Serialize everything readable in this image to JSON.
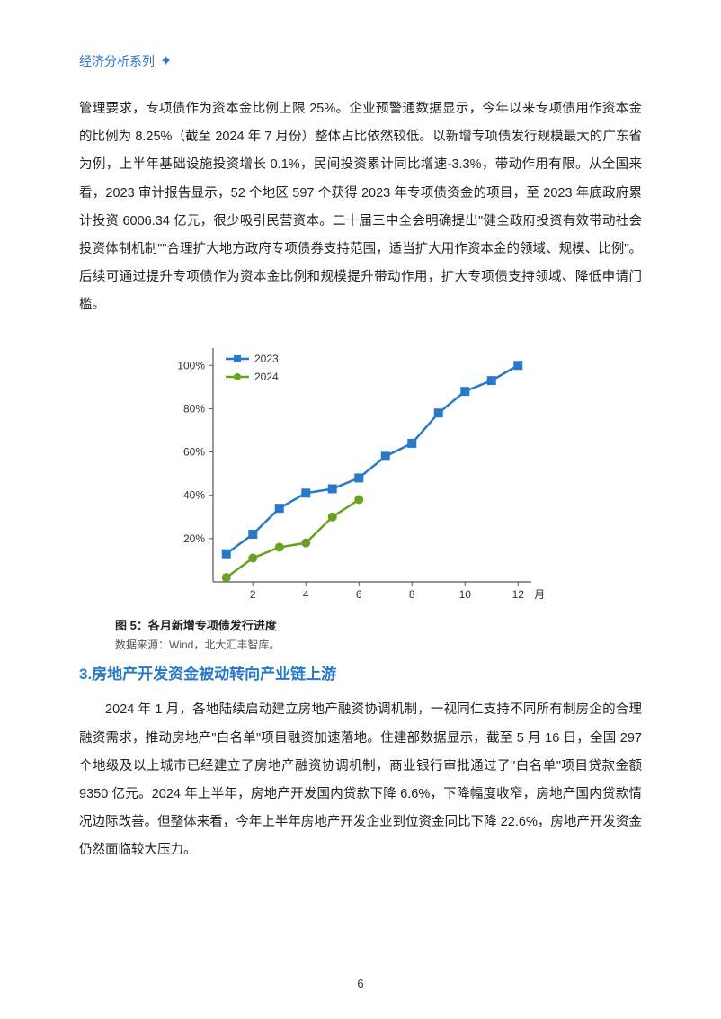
{
  "header": {
    "title": "经济分析系列"
  },
  "paragraph1": "管理要求，专项债作为资本金比例上限 25%。企业预警通数据显示，今年以来专项债用作资本金的比例为 8.25%（截至 2024 年 7 月份）整体占比依然较低。以新增专项债发行规模最大的广东省为例，上半年基础设施投资增长 0.1%，民间投资累计同比增速-3.3%，带动作用有限。从全国来看，2023 审计报告显示，52 个地区 597 个获得 2023 年专项债资金的项目，至 2023 年底政府累计投资 6006.34 亿元，很少吸引民营资本。二十届三中全会明确提出\"健全政府投资有效带动社会投资体制机制\"\"合理扩大地方政府专项债券支持范围，适当扩大用作资本金的领域、规模、比例\"。后续可通过提升专项债作为资本金比例和规模提升带动作用，扩大专项债支持领域、降低申请门槛。",
  "chart": {
    "type": "line",
    "series": [
      {
        "name": "2023",
        "color": "#2979c9",
        "marker": "square",
        "x": [
          1,
          2,
          3,
          4,
          5,
          6,
          7,
          8,
          9,
          10,
          11,
          12
        ],
        "y": [
          13,
          22,
          34,
          41,
          43,
          48,
          58,
          64,
          78,
          88,
          93,
          100
        ]
      },
      {
        "name": "2024",
        "color": "#6aa121",
        "marker": "circle",
        "x": [
          1,
          2,
          3,
          4,
          5,
          6
        ],
        "y": [
          2,
          11,
          16,
          18,
          30,
          38
        ]
      }
    ],
    "ylim": [
      0,
      108
    ],
    "yticks": [
      20,
      40,
      60,
      80,
      100
    ],
    "ytick_labels": [
      "20%",
      "40%",
      "60%",
      "80%",
      "100%"
    ],
    "xticks": [
      2,
      4,
      6,
      8,
      10,
      12
    ],
    "xtick_labels": [
      "2",
      "4",
      "6",
      "8",
      "10",
      "12"
    ],
    "x_unit": "月",
    "legend_items": [
      "2023",
      "2024"
    ],
    "legend_colors": [
      "#2979c9",
      "#6aa121"
    ],
    "axis_color": "#555555",
    "line_width": 2.5,
    "marker_size": 5,
    "label_fontsize": 12,
    "background_color": "#ffffff"
  },
  "figure_caption": "图 5：各月新增专项债发行进度",
  "figure_source": "数据来源：Wind，北大汇丰智库。",
  "section_heading": "3.房地产开发资金被动转向产业链上游",
  "paragraph2": "2024 年 1 月，各地陆续启动建立房地产融资协调机制，一视同仁支持不同所有制房企的合理融资需求，推动房地产\"白名单\"项目融资加速落地。住建部数据显示，截至 5 月 16 日，全国 297 个地级及以上城市已经建立了房地产融资协调机制，商业银行审批通过了\"白名单\"项目贷款金额 9350 亿元。2024 年上半年，房地产开发国内贷款下降 6.6%，下降幅度收窄，房地产国内贷款情况边际改善。但整体来看，今年上半年房地产开发企业到位资金同比下降 22.6%，房地产开发资金仍然面临较大压力。",
  "page_number": "6"
}
